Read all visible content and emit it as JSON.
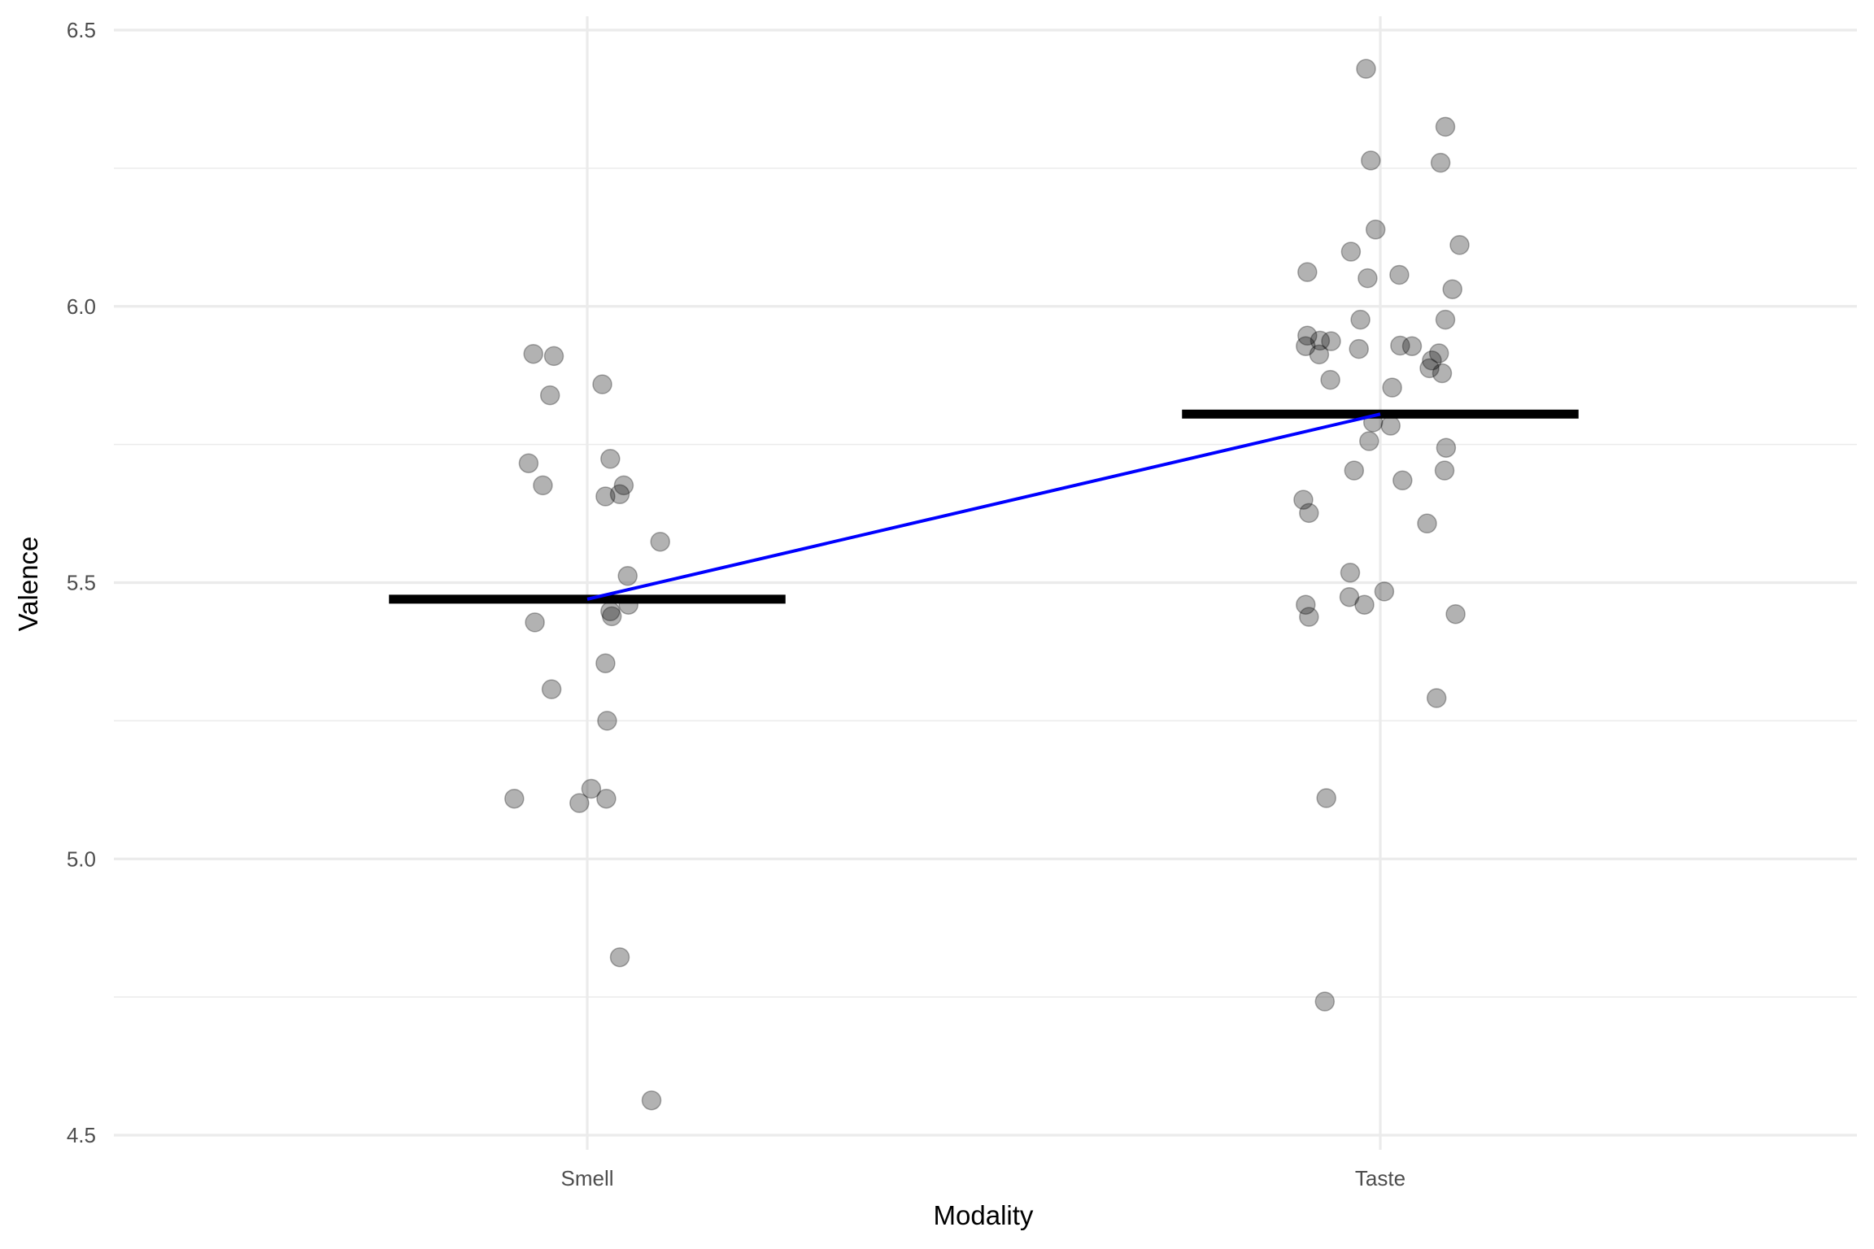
{
  "chart_data": {
    "type": "scatter",
    "title": "",
    "xlabel": "Modality",
    "ylabel": "Valence",
    "categories": [
      "Smell",
      "Taste"
    ],
    "ylim": [
      4.5,
      6.5
    ],
    "y_ticks": [
      "4.5",
      "5.0",
      "5.5",
      "6.0",
      "6.5"
    ],
    "y_tick_values": [
      4.5,
      5.0,
      5.5,
      6.0,
      6.5
    ],
    "y_minor_values": [
      4.75,
      5.25,
      5.75,
      6.25
    ],
    "grid": true,
    "legend": "none",
    "point_style": {
      "fill": "#000000",
      "alpha": 0.3
    },
    "mean_color": "#000000",
    "connect_line_color": "#0000ff",
    "means": [
      {
        "category": "Smell",
        "value": 5.47
      },
      {
        "category": "Taste",
        "value": 5.805
      }
    ],
    "series": [
      {
        "name": "Smell",
        "values": [
          5.914,
          5.91,
          5.839,
          5.859,
          5.716,
          5.676,
          5.724,
          5.676,
          5.66,
          5.656,
          5.574,
          5.512,
          5.46,
          5.448,
          5.439,
          5.428,
          5.354,
          5.307,
          5.25,
          5.127,
          5.109,
          5.101,
          5.109,
          4.822,
          4.563
        ],
        "jitter": [
          -0.068,
          -0.042,
          -0.047,
          0.019,
          -0.074,
          -0.056,
          0.029,
          0.046,
          0.041,
          0.023,
          0.092,
          0.051,
          0.052,
          0.029,
          0.031,
          -0.066,
          0.023,
          -0.045,
          0.025,
          0.005,
          -0.092,
          -0.01,
          0.024,
          0.041,
          0.081
        ]
      },
      {
        "name": "Taste",
        "values": [
          6.43,
          6.325,
          6.264,
          6.26,
          6.139,
          6.111,
          6.099,
          6.062,
          6.051,
          6.057,
          6.031,
          5.976,
          5.976,
          5.947,
          5.938,
          5.937,
          5.928,
          5.913,
          5.923,
          5.929,
          5.928,
          5.915,
          5.902,
          5.888,
          5.879,
          5.867,
          5.853,
          5.79,
          5.784,
          5.756,
          5.744,
          5.703,
          5.703,
          5.685,
          5.65,
          5.626,
          5.607,
          5.518,
          5.484,
          5.474,
          5.46,
          5.46,
          5.438,
          5.443,
          5.291,
          5.11,
          4.742
        ],
        "jitter": [
          -0.018,
          0.082,
          -0.012,
          0.076,
          -0.006,
          0.1,
          -0.037,
          -0.092,
          -0.016,
          0.024,
          0.091,
          -0.025,
          0.082,
          -0.092,
          -0.076,
          -0.062,
          -0.094,
          -0.077,
          -0.027,
          0.025,
          0.04,
          0.074,
          0.065,
          0.062,
          0.078,
          -0.063,
          0.015,
          -0.009,
          0.013,
          -0.014,
          0.083,
          -0.033,
          0.081,
          0.028,
          -0.097,
          -0.09,
          0.059,
          -0.038,
          0.005,
          -0.039,
          -0.094,
          -0.02,
          -0.09,
          0.095,
          0.071,
          -0.068,
          -0.07
        ]
      }
    ]
  }
}
